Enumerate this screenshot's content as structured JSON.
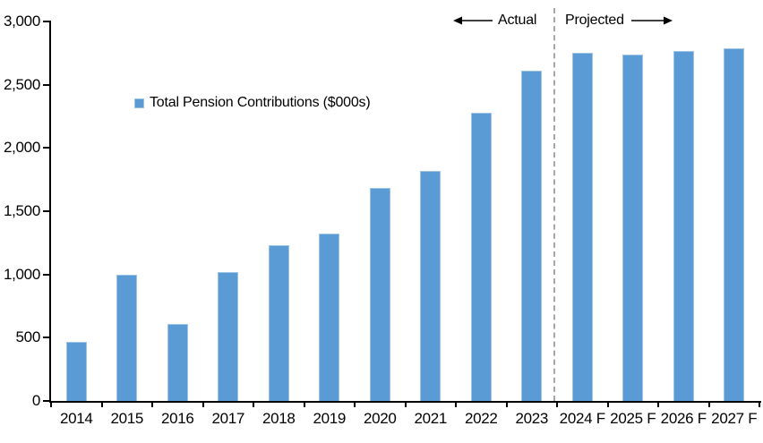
{
  "chart_data": {
    "type": "bar",
    "title": "",
    "categories": [
      "2014",
      "2015",
      "2016",
      "2017",
      "2018",
      "2019",
      "2020",
      "2021",
      "2022",
      "2023",
      "2024 F",
      "2025 F",
      "2026 F",
      "2027 F"
    ],
    "series": [
      {
        "name": "Total Pension Contributions ($000s)",
        "values": [
          470,
          995,
          610,
          1020,
          1235,
          1320,
          1685,
          1820,
          2280,
          2610,
          2750,
          2740,
          2765,
          2790
        ]
      }
    ],
    "ylim": [
      0,
      3000
    ],
    "ytick_values": [
      0,
      500,
      1000,
      1500,
      2000,
      2500,
      3000
    ],
    "ytick_labels": [
      "0",
      "500",
      "1,000",
      "1,500",
      "2,000",
      "2,500",
      "3,000"
    ],
    "xlabel": "",
    "ylabel": "",
    "grid": false,
    "legend_position": "inside-upper-left",
    "annotations": {
      "actual_label": "Actual",
      "projected_label": "Projected",
      "divider_between": [
        "2023",
        "2024 F"
      ]
    },
    "colors": {
      "bar_fill": "#5B9BD5",
      "bar_border": "#9DC3E6",
      "axis": "#000000",
      "divider": "#A6A6A6",
      "text": "#000000"
    }
  }
}
